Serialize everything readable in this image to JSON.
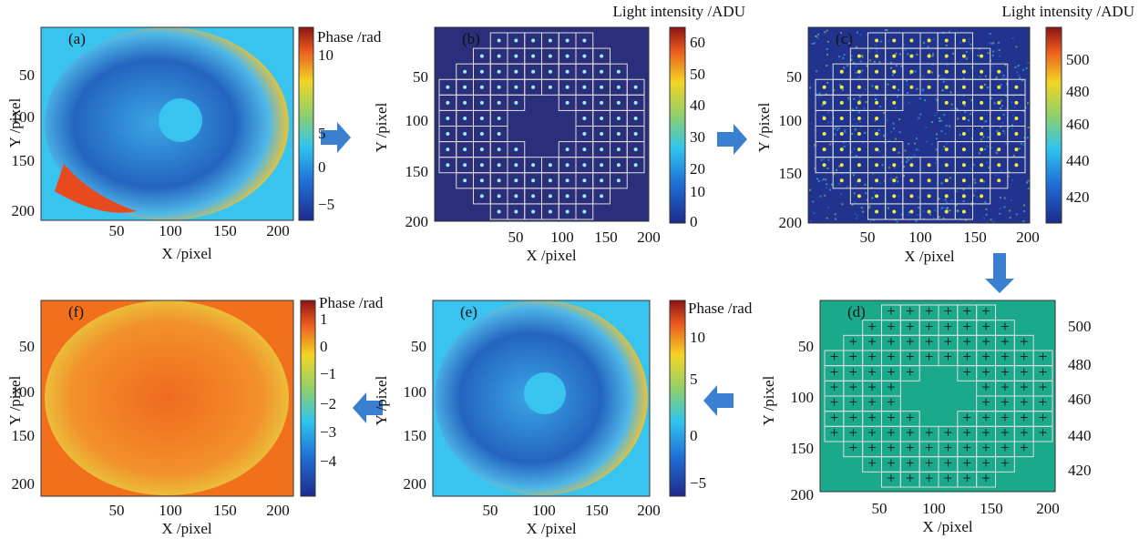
{
  "panels": [
    {
      "label": "(a)",
      "xlabel": "X /pixel",
      "ylabel": "Y /pixel",
      "xticks": [
        "50",
        "100",
        "150",
        "200"
      ],
      "yticks": [
        "50",
        "100",
        "150",
        "200"
      ],
      "colorbar_title": "Phase /rad",
      "colorbar_ticks": [
        "10",
        "5",
        "0",
        "−5"
      ]
    },
    {
      "label": "(b)",
      "xlabel": "X /pixel",
      "ylabel": "Y /pixel",
      "xticks": [
        "50",
        "100",
        "150",
        "200"
      ],
      "yticks": [
        "50",
        "100",
        "150",
        "200"
      ],
      "colorbar_title": "Light intensity /ADU",
      "colorbar_ticks": [
        "60",
        "50",
        "40",
        "30",
        "20",
        "10",
        "0"
      ]
    },
    {
      "label": "(c)",
      "xlabel": "X /pixel",
      "ylabel": "Y /pixel",
      "xticks": [
        "50",
        "100",
        "150",
        "200"
      ],
      "yticks": [
        "50",
        "100",
        "150",
        "200"
      ],
      "colorbar_title": "Light intensity /ADU",
      "colorbar_ticks": [
        "500",
        "480",
        "460",
        "440",
        "420"
      ]
    },
    {
      "label": "(d)",
      "xlabel": "X /pixel",
      "ylabel": "Y /pixel",
      "xticks": [
        "50",
        "100",
        "150",
        "200"
      ],
      "yticks": [
        "50",
        "100",
        "150",
        "200"
      ],
      "colorbar_ticks": [
        "500",
        "480",
        "460",
        "440",
        "420"
      ]
    },
    {
      "label": "(e)",
      "xlabel": "X /pixel",
      "ylabel": "Y /pixel",
      "xticks": [
        "50",
        "100",
        "150",
        "200"
      ],
      "yticks": [
        "50",
        "100",
        "150",
        "200"
      ],
      "colorbar_title": "Phase /rad",
      "colorbar_ticks": [
        "10",
        "5",
        "0",
        "−5"
      ]
    },
    {
      "label": "(f)",
      "xlabel": "X /pixel",
      "ylabel": "Y /pixel",
      "xticks": [
        "50",
        "100",
        "150",
        "200"
      ],
      "yticks": [
        "50",
        "100",
        "150",
        "200"
      ],
      "colorbar_title": "Phase /rad",
      "colorbar_ticks": [
        "1",
        "0",
        "−1",
        "−2",
        "−3",
        "−4"
      ]
    }
  ]
}
